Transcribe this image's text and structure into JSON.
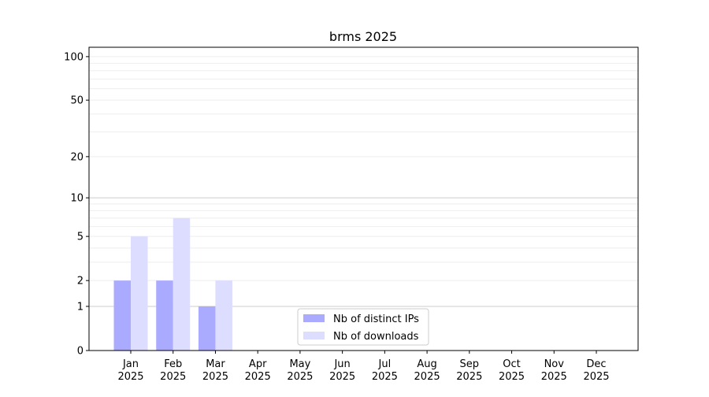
{
  "chart_data": {
    "type": "bar",
    "title": "brms 2025",
    "xlabel": "",
    "ylabel": "",
    "y_scale": "symlog (log of 1+y)",
    "ylim": [
      0,
      116
    ],
    "yticks": [
      0,
      1,
      2,
      5,
      10,
      20,
      50,
      100
    ],
    "grid": true,
    "legend_position": "lower-center",
    "categories": [
      "Jan\n2025",
      "Feb\n2025",
      "Mar\n2025",
      "Apr\n2025",
      "May\n2025",
      "Jun\n2025",
      "Jul\n2025",
      "Aug\n2025",
      "Sep\n2025",
      "Oct\n2025",
      "Nov\n2025",
      "Dec\n2025"
    ],
    "series": [
      {
        "name": "Nb of distinct IPs",
        "color": "#aaaaff",
        "values": [
          2,
          2,
          1,
          0,
          0,
          0,
          0,
          0,
          0,
          0,
          0,
          0
        ]
      },
      {
        "name": "Nb of downloads",
        "color": "#ddddff",
        "values": [
          5,
          7,
          2,
          0,
          0,
          0,
          0,
          0,
          0,
          0,
          0,
          0
        ]
      }
    ]
  }
}
